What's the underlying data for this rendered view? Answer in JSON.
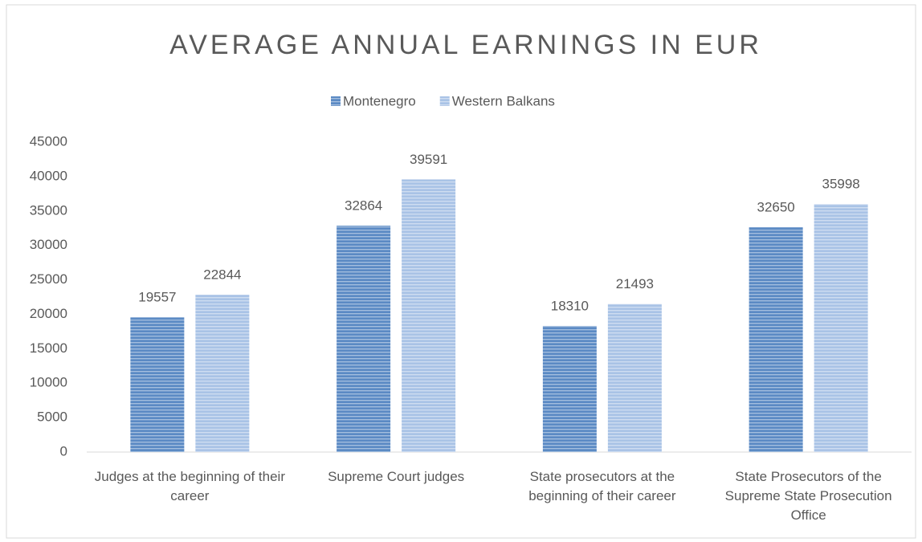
{
  "chart_data": {
    "type": "bar",
    "title": "AVERAGE ANNUAL EARNINGS IN EUR",
    "categories": [
      "Judges at the beginning of their career",
      "Supreme Court judges",
      "State prosecutors at the beginning of their career",
      "State Prosecutors of the Supreme State Prosecution Office"
    ],
    "series": [
      {
        "name": "Montenegro",
        "color": "#5b8ac4",
        "values": [
          19557,
          32864,
          18310,
          32650
        ]
      },
      {
        "name": "Western Balkans",
        "color": "#a9c3e6",
        "values": [
          22844,
          39591,
          21493,
          35998
        ]
      }
    ],
    "ylim": [
      0,
      45000
    ],
    "yticks": [
      0,
      5000,
      10000,
      15000,
      20000,
      25000,
      30000,
      35000,
      40000,
      45000
    ],
    "grid": false,
    "legend": "top"
  }
}
